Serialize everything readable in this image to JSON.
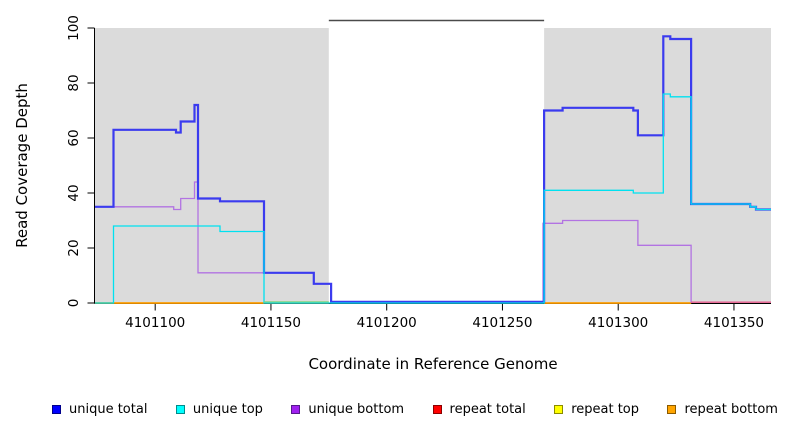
{
  "chart_data": {
    "type": "line",
    "subtype": "step-coverage",
    "title": "",
    "xlabel": "Coordinate in Reference Genome",
    "ylabel": "Read Coverage Depth",
    "xlim": [
      4101074,
      4101366
    ],
    "ylim": [
      0,
      100
    ],
    "x_ticks": [
      4101100,
      4101150,
      4101200,
      4101250,
      4101300,
      4101350
    ],
    "y_ticks": [
      0,
      20,
      40,
      60,
      80,
      100
    ],
    "grid": false,
    "legend_position": "bottom",
    "colors": {
      "shaded_region": "#DBDBDB",
      "gap_top_border": "#4A4A4A",
      "axis": "#000000"
    },
    "shaded_regions": [
      {
        "name": "left-gray-region",
        "x0": 4101074,
        "x1": 4101175
      },
      {
        "name": "right-gray-region",
        "x0": 4101268,
        "x1": 4101366
      }
    ],
    "gap_region": {
      "x0": 4101175,
      "x1": 4101268
    },
    "series": [
      {
        "name": "repeat total",
        "color": "#FF0000",
        "width": 1.2,
        "segments": [
          {
            "steps": [
              [
                4101074,
                0
              ]
            ],
            "end": 4101175
          },
          {
            "steps": [
              [
                4101268,
                0
              ]
            ],
            "end": 4101331.5
          }
        ]
      },
      {
        "name": "repeat top",
        "color": "#FFFF00",
        "width": 1.2,
        "segments": [
          {
            "steps": [
              [
                4101074,
                0
              ]
            ],
            "end": 4101175
          },
          {
            "steps": [
              [
                4101268,
                0
              ]
            ],
            "end": 4101331.5
          }
        ]
      },
      {
        "name": "repeat bottom",
        "color": "#FFA000",
        "width": 1.6,
        "segments": [
          {
            "steps": [
              [
                4101074,
                0
              ]
            ],
            "end": 4101147
          },
          {
            "steps": [
              [
                4101268,
                0
              ]
            ],
            "end": 4101331.5
          }
        ]
      },
      {
        "name": "unique bottom",
        "color": "#B273E2",
        "width": 1.3,
        "segments": [
          {
            "steps": [
              [
                4101074,
                35
              ],
              [
                4101108,
                34
              ],
              [
                4101111,
                38
              ],
              [
                4101117,
                44
              ],
              [
                4101118.5,
                11
              ],
              [
                4101168.5,
                7
              ],
              [
                4101176,
                0
              ],
              [
                4101267.5,
                29
              ],
              [
                4101276,
                30
              ],
              [
                4101308.5,
                21
              ],
              [
                4101331.5,
                0.3
              ]
            ],
            "end": 4101332
          }
        ]
      },
      {
        "name": "unique total",
        "color": "#3B3BEF",
        "width": 2.2,
        "segments": [
          {
            "steps": [
              [
                4101074,
                35
              ],
              [
                4101082,
                63
              ],
              [
                4101109,
                62
              ],
              [
                4101111,
                66
              ],
              [
                4101117,
                72
              ],
              [
                4101118.5,
                38
              ],
              [
                4101128,
                37
              ],
              [
                4101147,
                11
              ],
              [
                4101168.5,
                7
              ],
              [
                4101176,
                0.4
              ],
              [
                4101268,
                70
              ],
              [
                4101276,
                71
              ],
              [
                4101306.5,
                70
              ],
              [
                4101308.5,
                61
              ],
              [
                4101319.5,
                97
              ],
              [
                4101322.5,
                96
              ],
              [
                4101331.5,
                36
              ],
              [
                4101357,
                35
              ],
              [
                4101359.5,
                34
              ]
            ],
            "end": 4101366
          }
        ]
      },
      {
        "name": "unique top",
        "color": "#00E1F0",
        "width": 1.3,
        "segments": [
          {
            "steps": [
              [
                4101074,
                0
              ],
              [
                4101082,
                28
              ],
              [
                4101128,
                26
              ],
              [
                4101147,
                0
              ],
              [
                4101268,
                41
              ],
              [
                4101306.5,
                40
              ],
              [
                4101319.5,
                76
              ],
              [
                4101322.5,
                75
              ],
              [
                4101331.5,
                36
              ],
              [
                4101357,
                35
              ],
              [
                4101359.5,
                34
              ]
            ],
            "end": 4101366
          }
        ]
      }
    ],
    "zero_line_overlays": [
      {
        "name": "zero-overlay-green",
        "color": "#82D382",
        "width": 1.3,
        "x0": 4101147,
        "x1": 4101175,
        "value": 0.4
      },
      {
        "name": "zero-overlay-pink",
        "color": "#E75B8D",
        "width": 1.3,
        "x0": 4101331.5,
        "x1": 4101366,
        "value": 0.3
      }
    ],
    "legend": [
      {
        "label": "unique total",
        "fill": "#0000FF",
        "border": "#00008B"
      },
      {
        "label": "unique top",
        "fill": "#00FFFF",
        "border": "#008B8B"
      },
      {
        "label": "unique bottom",
        "fill": "#A020F0",
        "border": "#551A8B"
      },
      {
        "label": "repeat total",
        "fill": "#FF0000",
        "border": "#8B0000"
      },
      {
        "label": "repeat top",
        "fill": "#FFFF00",
        "border": "#8B8B00"
      },
      {
        "label": "repeat bottom",
        "fill": "#FFA500",
        "border": "#8B5A00"
      }
    ]
  },
  "layout_text": {
    "xlabel": "Coordinate in Reference Genome",
    "ylabel": "Read Coverage Depth"
  }
}
